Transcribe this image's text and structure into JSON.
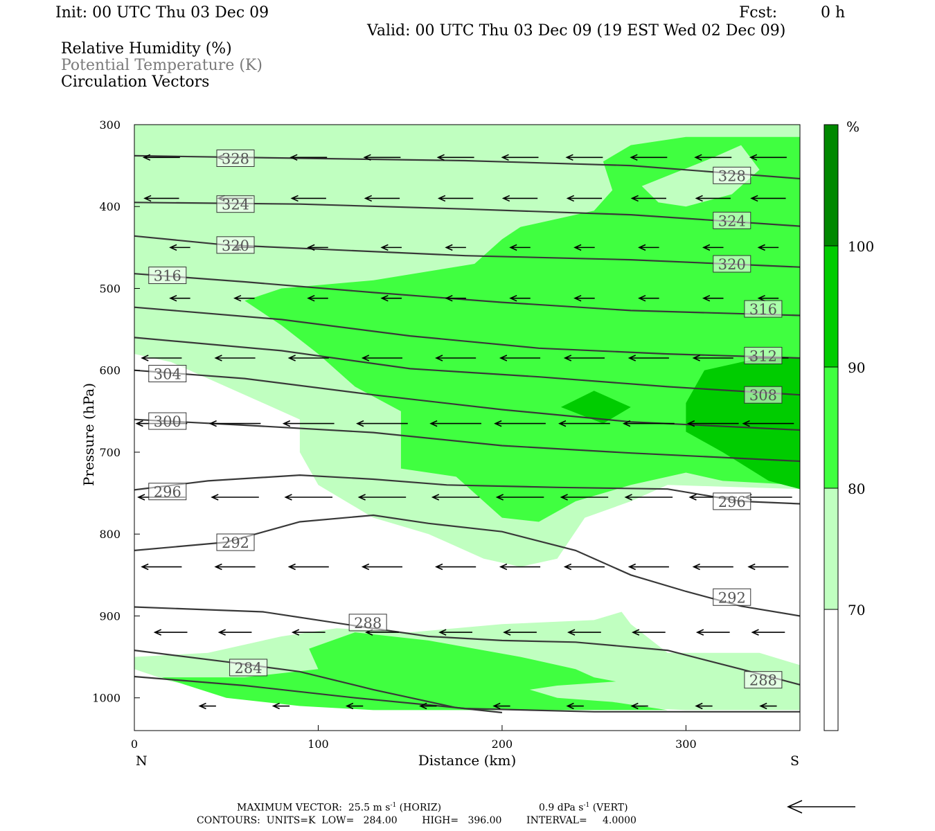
{
  "header": {
    "init": "Init: 00 UTC Thu 03 Dec 09",
    "fcst_label": "Fcst:",
    "fcst_value": "0 h",
    "valid": "Valid: 00 UTC Thu 03 Dec 09 (19 EST Wed 02 Dec 09)",
    "legend": [
      {
        "text": "Relative Humidity (%)",
        "color": "#000000"
      },
      {
        "text": "Potential Temperature (K)",
        "color": "#7a7a7a"
      },
      {
        "text": "Circulation Vectors",
        "color": "#000000"
      }
    ]
  },
  "colors": {
    "rh_70": "#c0ffc0",
    "rh_80": "#40ff40",
    "rh_90": "#00cc00",
    "rh_100": "#008800",
    "theta_line": "#383838",
    "vector": "#000000"
  },
  "chart_data": {
    "type": "cross-section",
    "xlabel": "Distance (km)",
    "ylabel": "Pressure (hPa)",
    "x_ticks": [
      0,
      100,
      200,
      300
    ],
    "y_ticks": [
      300,
      400,
      500,
      600,
      700,
      800,
      900,
      1000
    ],
    "xlim": [
      0,
      362
    ],
    "ylim": [
      300,
      1040
    ],
    "y_reversed": true,
    "x_end_labels": {
      "left": "N",
      "right": "S"
    },
    "colorbar": {
      "unit": "%",
      "levels": [
        70,
        80,
        90,
        100
      ],
      "colors": [
        "#ffffff",
        "#c0ffc0",
        "#40ff40",
        "#00cc00",
        "#008800"
      ]
    },
    "rh_regions": [
      {
        "level": 70,
        "points": [
          [
            0,
            300
          ],
          [
            362,
            300
          ],
          [
            362,
            745
          ],
          [
            290,
            740
          ],
          [
            270,
            760
          ],
          [
            245,
            780
          ],
          [
            230,
            830
          ],
          [
            210,
            840
          ],
          [
            190,
            830
          ],
          [
            160,
            800
          ],
          [
            130,
            780
          ],
          [
            100,
            740
          ],
          [
            90,
            700
          ],
          [
            90,
            660
          ],
          [
            70,
            640
          ],
          [
            50,
            620
          ],
          [
            20,
            590
          ],
          [
            0,
            580
          ]
        ]
      },
      {
        "level": 70,
        "points": [
          [
            0,
            950
          ],
          [
            40,
            945
          ],
          [
            80,
            925
          ],
          [
            110,
            915
          ],
          [
            150,
            920
          ],
          [
            200,
            910
          ],
          [
            250,
            905
          ],
          [
            265,
            895
          ],
          [
            270,
            910
          ],
          [
            290,
            945
          ],
          [
            340,
            945
          ],
          [
            362,
            960
          ],
          [
            362,
            1015
          ],
          [
            300,
            1015
          ],
          [
            250,
            1010
          ],
          [
            190,
            1015
          ],
          [
            130,
            1010
          ],
          [
            70,
            1000
          ],
          [
            20,
            980
          ],
          [
            0,
            965
          ]
        ]
      },
      {
        "level": 80,
        "points": [
          [
            270,
            325
          ],
          [
            300,
            315
          ],
          [
            362,
            315
          ],
          [
            362,
            740
          ],
          [
            320,
            735
          ],
          [
            300,
            725
          ],
          [
            270,
            740
          ],
          [
            240,
            760
          ],
          [
            220,
            785
          ],
          [
            200,
            780
          ],
          [
            175,
            730
          ],
          [
            145,
            720
          ],
          [
            145,
            650
          ],
          [
            120,
            620
          ],
          [
            100,
            580
          ],
          [
            80,
            545
          ],
          [
            60,
            515
          ],
          [
            80,
            500
          ],
          [
            130,
            490
          ],
          [
            185,
            470
          ],
          [
            200,
            440
          ],
          [
            210,
            425
          ],
          [
            250,
            405
          ],
          [
            260,
            380
          ],
          [
            255,
            345
          ]
        ]
      },
      {
        "level": 80,
        "points": [
          [
            95,
            940
          ],
          [
            120,
            920
          ],
          [
            160,
            930
          ],
          [
            210,
            950
          ],
          [
            240,
            965
          ],
          [
            250,
            975
          ],
          [
            262,
            980
          ],
          [
            230,
            985
          ],
          [
            215,
            990
          ],
          [
            230,
            1000
          ],
          [
            260,
            1005
          ],
          [
            290,
            1015
          ],
          [
            130,
            1015
          ],
          [
            90,
            1010
          ],
          [
            50,
            1000
          ],
          [
            15,
            975
          ],
          [
            60,
            975
          ],
          [
            100,
            965
          ]
        ]
      },
      {
        "level": 90,
        "points": [
          [
            310,
            600
          ],
          [
            340,
            585
          ],
          [
            362,
            585
          ],
          [
            362,
            745
          ],
          [
            345,
            735
          ],
          [
            320,
            700
          ],
          [
            300,
            675
          ],
          [
            300,
            640
          ]
        ]
      },
      {
        "level": 90,
        "points": [
          [
            232,
            645
          ],
          [
            250,
            625
          ],
          [
            270,
            645
          ],
          [
            255,
            665
          ]
        ]
      }
    ],
    "rh_holes_70": [
      {
        "points": [
          [
            276,
            375
          ],
          [
            315,
            340
          ],
          [
            330,
            325
          ],
          [
            340,
            355
          ],
          [
            325,
            385
          ],
          [
            300,
            400
          ],
          [
            285,
            395
          ]
        ]
      }
    ],
    "theta_contours": [
      {
        "label": "328",
        "points": [
          [
            0,
            338
          ],
          [
            90,
            341
          ],
          [
            180,
            344
          ],
          [
            270,
            350
          ],
          [
            362,
            366
          ]
        ],
        "label_pos": [
          [
            55,
            341
          ],
          [
            325,
            362
          ]
        ]
      },
      {
        "label": "324",
        "points": [
          [
            0,
            395
          ],
          [
            90,
            397
          ],
          [
            180,
            403
          ],
          [
            270,
            410
          ],
          [
            362,
            424
          ]
        ],
        "label_pos": [
          [
            55,
            397
          ],
          [
            325,
            417
          ]
        ]
      },
      {
        "label": "320",
        "points": [
          [
            0,
            436
          ],
          [
            50,
            447
          ],
          [
            100,
            452
          ],
          [
            180,
            460
          ],
          [
            270,
            465
          ],
          [
            362,
            474
          ]
        ],
        "label_pos": [
          [
            55,
            447
          ],
          [
            325,
            470
          ]
        ]
      },
      {
        "label": "316",
        "points": [
          [
            0,
            482
          ],
          [
            60,
            492
          ],
          [
            130,
            505
          ],
          [
            200,
            517
          ],
          [
            270,
            527
          ],
          [
            362,
            533
          ]
        ],
        "label_pos": [
          [
            18,
            484
          ],
          [
            342,
            525
          ]
        ]
      },
      {
        "label": "312",
        "points": [
          [
            0,
            523
          ],
          [
            80,
            538
          ],
          [
            150,
            558
          ],
          [
            220,
            573
          ],
          [
            290,
            580
          ],
          [
            362,
            585
          ]
        ],
        "label_pos": [
          [
            342,
            582
          ]
        ]
      },
      {
        "label": "308",
        "points": [
          [
            0,
            560
          ],
          [
            80,
            576
          ],
          [
            150,
            598
          ],
          [
            220,
            608
          ],
          [
            290,
            620
          ],
          [
            362,
            630
          ]
        ],
        "label_pos": [
          [
            342,
            630
          ]
        ]
      },
      {
        "label": "304",
        "points": [
          [
            0,
            600
          ],
          [
            60,
            610
          ],
          [
            130,
            630
          ],
          [
            200,
            648
          ],
          [
            270,
            663
          ],
          [
            362,
            673
          ]
        ],
        "label_pos": [
          [
            18,
            604
          ]
        ]
      },
      {
        "label": "300",
        "points": [
          [
            0,
            660
          ],
          [
            60,
            667
          ],
          [
            130,
            676
          ],
          [
            200,
            692
          ],
          [
            270,
            701
          ],
          [
            362,
            711
          ]
        ],
        "label_pos": [
          [
            18,
            662
          ]
        ]
      },
      {
        "label": "296",
        "points": [
          [
            0,
            746
          ],
          [
            40,
            735
          ],
          [
            90,
            728
          ],
          [
            130,
            733
          ],
          [
            170,
            740
          ],
          [
            230,
            743
          ],
          [
            290,
            745
          ],
          [
            330,
            760
          ],
          [
            362,
            763
          ]
        ],
        "label_pos": [
          [
            18,
            748
          ],
          [
            325,
            760
          ]
        ]
      },
      {
        "label": "292",
        "points": [
          [
            0,
            820
          ],
          [
            50,
            810
          ],
          [
            90,
            785
          ],
          [
            130,
            777
          ],
          [
            160,
            787
          ],
          [
            200,
            797
          ],
          [
            240,
            820
          ],
          [
            270,
            850
          ],
          [
            300,
            870
          ],
          [
            330,
            888
          ],
          [
            362,
            900
          ]
        ],
        "label_pos": [
          [
            55,
            810
          ],
          [
            325,
            877
          ]
        ]
      },
      {
        "label": "288",
        "points": [
          [
            0,
            889
          ],
          [
            70,
            895
          ],
          [
            120,
            912
          ],
          [
            160,
            925
          ],
          [
            200,
            930
          ],
          [
            240,
            932
          ],
          [
            290,
            942
          ],
          [
            330,
            965
          ],
          [
            362,
            984
          ]
        ],
        "label_pos": [
          [
            127,
            908
          ],
          [
            342,
            978
          ]
        ]
      },
      {
        "label": "284",
        "points": [
          [
            0,
            942
          ],
          [
            50,
            956
          ],
          [
            90,
            968
          ],
          [
            130,
            990
          ],
          [
            175,
            1012
          ],
          [
            200,
            1018
          ]
        ],
        "label_pos": [
          [
            62,
            963
          ]
        ]
      },
      {
        "label": "",
        "points": [
          [
            0,
            974
          ],
          [
            60,
            985
          ],
          [
            120,
            1000
          ],
          [
            180,
            1013
          ],
          [
            250,
            1017
          ],
          [
            362,
            1017
          ]
        ],
        "label_pos": []
      }
    ],
    "vector_rows": [
      {
        "p": 340,
        "xs": [
          15,
          55,
          95,
          135,
          175,
          210,
          245,
          280,
          315,
          345
        ],
        "len": 20
      },
      {
        "p": 390,
        "xs": [
          15,
          55,
          95,
          135,
          175,
          210,
          245,
          280,
          315,
          345
        ],
        "len": 19
      },
      {
        "p": 450,
        "xs": [
          25,
          60,
          100,
          140,
          175,
          210,
          245,
          280,
          315,
          345
        ],
        "len": 11
      },
      {
        "p": 512,
        "xs": [
          25,
          60,
          100,
          140,
          175,
          210,
          245,
          280,
          315,
          345
        ],
        "len": 11
      },
      {
        "p": 585,
        "xs": [
          15,
          55,
          95,
          135,
          175,
          210,
          245,
          280,
          315,
          345
        ],
        "len": 22
      },
      {
        "p": 665,
        "xs": [
          15,
          55,
          95,
          135,
          175,
          210,
          245,
          280,
          315,
          345
        ],
        "len": 28
      },
      {
        "p": 755,
        "xs": [
          15,
          55,
          95,
          135,
          175,
          210,
          245,
          280,
          315,
          345
        ],
        "len": 26
      },
      {
        "p": 840,
        "xs": [
          15,
          55,
          95,
          135,
          175,
          210,
          245,
          280,
          315,
          345
        ],
        "len": 22
      },
      {
        "p": 920,
        "xs": [
          20,
          55,
          95,
          135,
          175,
          210,
          245,
          280,
          315,
          345
        ],
        "len": 18
      },
      {
        "p": 1010,
        "xs": [
          40,
          80,
          120,
          160,
          200,
          240,
          275,
          310,
          345
        ],
        "len": 9
      }
    ]
  },
  "footer": {
    "max_vector_label": "MAXIMUM VECTOR:",
    "max_vector_horiz": "25.5 m s",
    "max_vector_horiz_unit": "(HORIZ)",
    "max_vector_vert": "0.9 dPa s",
    "max_vector_vert_unit": "(VERT)",
    "superscript": "-1",
    "contours": "CONTOURS:  UNITS=K  LOW=   284.00        HIGH=   396.00        INTERVAL=     4.0000"
  }
}
